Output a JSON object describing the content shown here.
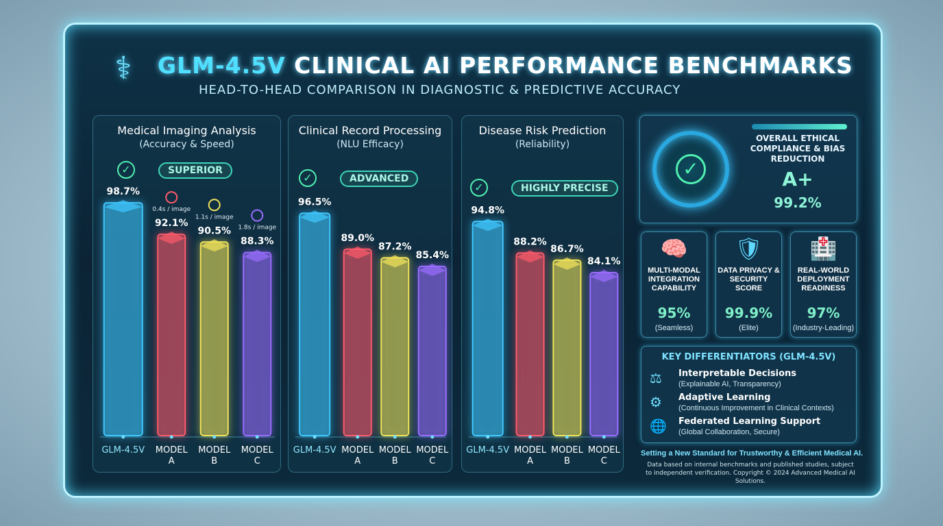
{
  "header": {
    "title_highlight": "GLM-4.5V",
    "title_rest": "CLINICAL AI PERFORMANCE BENCHMARKS",
    "subtitle": "HEAD-TO-HEAD COMPARISON IN DIAGNOSTIC & PREDICTIVE ACCURACY",
    "logo_icon": "caduceus-icon"
  },
  "colors": {
    "GLM-4.5V": "#3fc8ff",
    "Model A": "#ff5a6a",
    "Model B": "#f2e45a",
    "Model C": "#9a6cff",
    "accent": "#4fe0ff",
    "badge": "#3fd6b8"
  },
  "chart_data": [
    {
      "type": "bar",
      "title": "Medical Imaging Analysis",
      "subtitle": "(Accuracy & Speed)",
      "badge": "SUPERIOR",
      "categories": [
        "GLM-4.5V",
        "MODEL A",
        "MODEL B",
        "MODEL C"
      ],
      "values": [
        98.7,
        92.1,
        90.5,
        88.3
      ],
      "labels": [
        "98.7%",
        "92.1%",
        "90.5%",
        "88.3%"
      ],
      "speed": [
        "",
        "0.4s / image",
        "1.1s / image",
        "1.8s / image"
      ]
    },
    {
      "type": "bar",
      "title": "Clinical Record Processing",
      "subtitle": "(NLU Efficacy)",
      "badge": "ADVANCED",
      "categories": [
        "GLM-4.5V",
        "MODEL A",
        "MODEL B",
        "MODEL C"
      ],
      "values": [
        96.5,
        89.0,
        87.2,
        85.4
      ],
      "labels": [
        "96.5%",
        "89.0%",
        "87.2%",
        "85.4%"
      ]
    },
    {
      "type": "bar",
      "title": "Disease Risk Prediction",
      "subtitle": "(Reliability)",
      "badge": "HIGHLY PRECISE",
      "categories": [
        "GLM-4.5V",
        "MODEL A",
        "MODEL B",
        "MODEL C"
      ],
      "values": [
        94.8,
        88.2,
        86.7,
        84.1
      ],
      "labels": [
        "94.8%",
        "88.2%",
        "86.7%",
        "84.1%"
      ]
    }
  ],
  "ethics": {
    "title": "OVERALL ETHICAL COMPLIANCE & BIAS REDUCTION",
    "grade": "A+",
    "score": "99.2%",
    "progress": 0.992
  },
  "cards": [
    {
      "icon": "brain-camera-icon",
      "label": "MULTI-MODAL INTEGRATION CAPABILITY",
      "value": "95%",
      "note": "(Seamless)"
    },
    {
      "icon": "shield-lock-icon",
      "label": "DATA PRIVACY & SECURITY SCORE",
      "value": "99.9%",
      "note": "(Elite)"
    },
    {
      "icon": "hospital-icon",
      "label": "REAL-WORLD DEPLOYMENT READINESS",
      "value": "97%",
      "note": "(Industry-Leading)"
    }
  ],
  "differentiators": {
    "title": "KEY DIFFERENTIATORS (GLM-4.5V)",
    "items": [
      {
        "icon": "scales-icon",
        "title": "Interpretable Decisions",
        "sub": "(Explainable AI, Transparency)"
      },
      {
        "icon": "gear-icon",
        "title": "Adaptive Learning",
        "sub": "(Continuous Improvement in Clinical Contexts)"
      },
      {
        "icon": "globe-icon",
        "title": "Federated Learning Support",
        "sub": "(Global Collaboration, Secure)"
      }
    ]
  },
  "footer": {
    "tagline": "Setting a New Standard for Trustworthy & Efficient Medical AI.",
    "disclaimer": "Data based on internal benchmarks and published studies, subject to independent verification. Copyright © 2024 Advanced Medical AI Solutions."
  }
}
